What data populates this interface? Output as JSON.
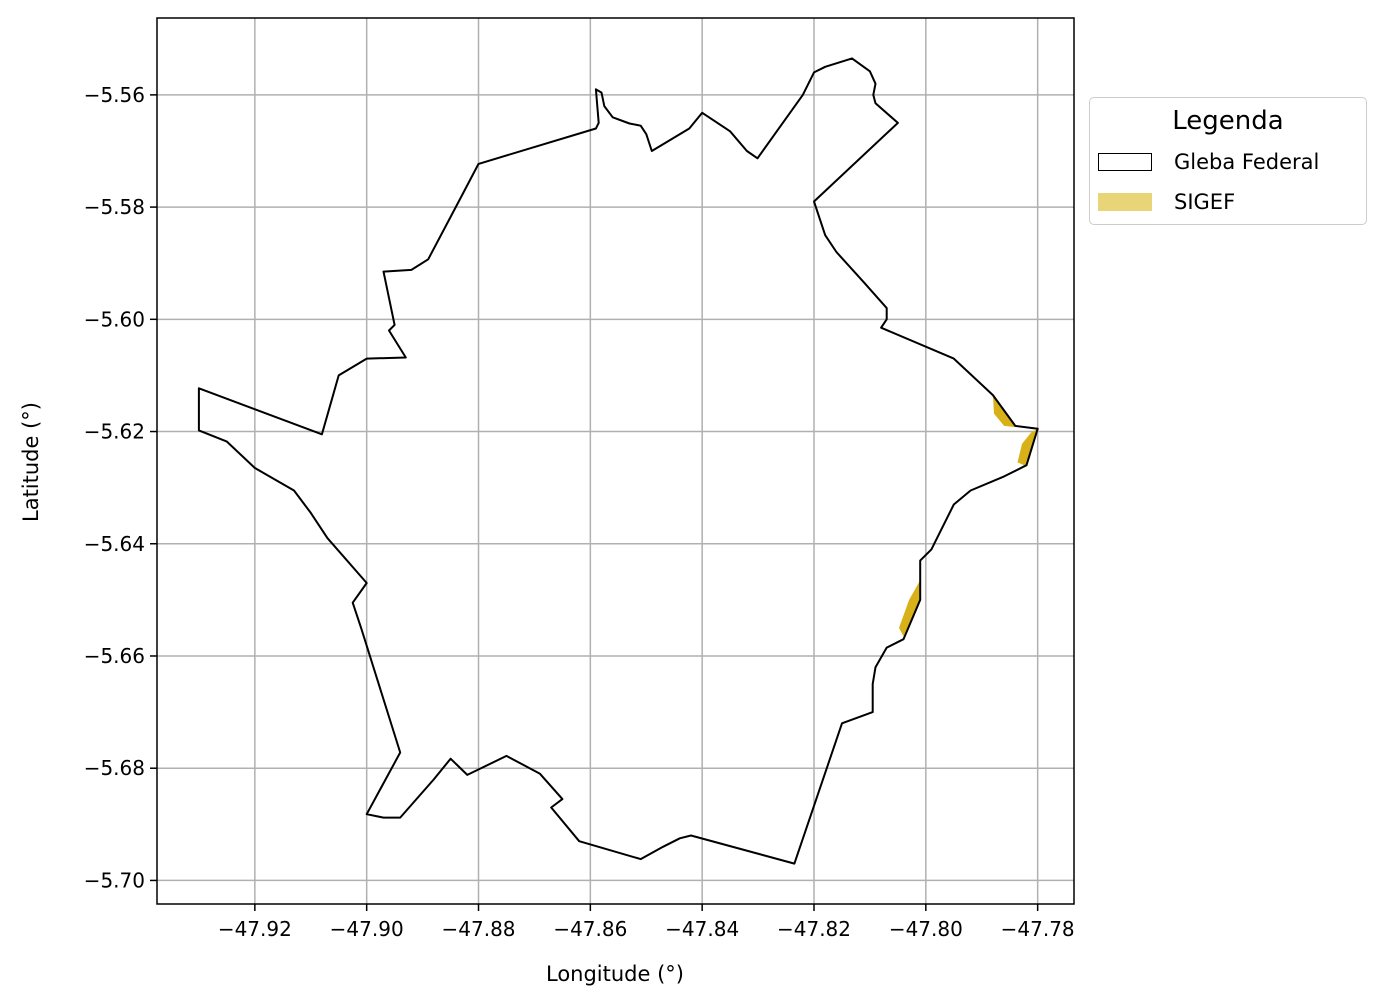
{
  "chart_data": {
    "type": "map",
    "xlabel": "Longitude (°)",
    "ylabel": "Latitude (°)",
    "xlim": [
      -47.9375,
      -47.7735
    ],
    "ylim": [
      -5.7042,
      -5.5463
    ],
    "x_ticks": [
      -47.92,
      -47.9,
      -47.88,
      -47.86,
      -47.84,
      -47.82,
      -47.8,
      -47.78
    ],
    "x_tick_labels": [
      "−47.92",
      "−47.90",
      "−47.88",
      "−47.86",
      "−47.84",
      "−47.82",
      "−47.80",
      "−47.78"
    ],
    "y_ticks": [
      -5.56,
      -5.58,
      -5.6,
      -5.62,
      -5.64,
      -5.66,
      -5.68,
      -5.7
    ],
    "y_tick_labels": [
      "−5.56",
      "−5.58",
      "−5.60",
      "−5.62",
      "−5.64",
      "−5.66",
      "−5.68",
      "−5.70"
    ],
    "grid": true,
    "legend": {
      "title": "Legenda",
      "placement": "outside-right",
      "entries": [
        {
          "label": "Gleba Federal",
          "facecolor": "#ffffff",
          "edgecolor": "#000000"
        },
        {
          "label": "SIGEF",
          "facecolor": "#e8d577"
        }
      ]
    },
    "layers": {
      "gleba_federal": {
        "edgecolor": "#000000",
        "facecolor": "none",
        "coordinates": [
          [
            -47.859,
            -5.559
          ],
          [
            -47.858,
            -5.5596
          ],
          [
            -47.8575,
            -5.562
          ],
          [
            -47.856,
            -5.564
          ],
          [
            -47.853,
            -5.5651
          ],
          [
            -47.851,
            -5.5655
          ],
          [
            -47.85,
            -5.567
          ],
          [
            -47.849,
            -5.57
          ],
          [
            -47.8423,
            -5.566
          ],
          [
            -47.84,
            -5.5632
          ],
          [
            -47.835,
            -5.5665
          ],
          [
            -47.832,
            -5.57
          ],
          [
            -47.8301,
            -5.5713
          ],
          [
            -47.822,
            -5.56
          ],
          [
            -47.82,
            -5.556
          ],
          [
            -47.818,
            -5.555
          ],
          [
            -47.8132,
            -5.5535
          ],
          [
            -47.81,
            -5.5558
          ],
          [
            -47.809,
            -5.558
          ],
          [
            -47.8094,
            -5.56
          ],
          [
            -47.809,
            -5.5615
          ],
          [
            -47.805,
            -5.565
          ],
          [
            -47.82,
            -5.579
          ],
          [
            -47.818,
            -5.585
          ],
          [
            -47.816,
            -5.588
          ],
          [
            -47.811,
            -5.5935
          ],
          [
            -47.807,
            -5.598
          ],
          [
            -47.807,
            -5.6
          ],
          [
            -47.808,
            -5.6015
          ],
          [
            -47.795,
            -5.607
          ],
          [
            -47.788,
            -5.6135
          ],
          [
            -47.784,
            -5.619
          ],
          [
            -47.78,
            -5.6195
          ],
          [
            -47.782,
            -5.626
          ],
          [
            -47.786,
            -5.628
          ],
          [
            -47.792,
            -5.6305
          ],
          [
            -47.795,
            -5.633
          ],
          [
            -47.798,
            -5.639
          ],
          [
            -47.799,
            -5.641
          ],
          [
            -47.801,
            -5.643
          ],
          [
            -47.801,
            -5.65
          ],
          [
            -47.804,
            -5.657
          ],
          [
            -47.807,
            -5.6585
          ],
          [
            -47.809,
            -5.662
          ],
          [
            -47.8095,
            -5.665
          ],
          [
            -47.8095,
            -5.67
          ],
          [
            -47.815,
            -5.672
          ],
          [
            -47.8235,
            -5.697
          ],
          [
            -47.842,
            -5.692
          ],
          [
            -47.844,
            -5.6925
          ],
          [
            -47.847,
            -5.694
          ],
          [
            -47.851,
            -5.6962
          ],
          [
            -47.862,
            -5.693
          ],
          [
            -47.867,
            -5.687
          ],
          [
            -47.865,
            -5.6855
          ],
          [
            -47.869,
            -5.681
          ],
          [
            -47.875,
            -5.6778
          ],
          [
            -47.882,
            -5.6812
          ],
          [
            -47.885,
            -5.6783
          ],
          [
            -47.888,
            -5.682
          ],
          [
            -47.894,
            -5.6888
          ],
          [
            -47.897,
            -5.6888
          ],
          [
            -47.9,
            -5.6882
          ],
          [
            -47.894,
            -5.6772
          ],
          [
            -47.901,
            -5.655
          ],
          [
            -47.9025,
            -5.6505
          ],
          [
            -47.9,
            -5.647
          ],
          [
            -47.907,
            -5.639
          ],
          [
            -47.91,
            -5.6345
          ],
          [
            -47.913,
            -5.6305
          ],
          [
            -47.92,
            -5.6265
          ],
          [
            -47.925,
            -5.6218
          ],
          [
            -47.93,
            -5.6198
          ],
          [
            -47.93,
            -5.6123
          ],
          [
            -47.908,
            -5.6205
          ],
          [
            -47.905,
            -5.61
          ],
          [
            -47.9,
            -5.607
          ],
          [
            -47.893,
            -5.6068
          ],
          [
            -47.896,
            -5.602
          ],
          [
            -47.895,
            -5.601
          ],
          [
            -47.897,
            -5.5915
          ],
          [
            -47.892,
            -5.5912
          ],
          [
            -47.889,
            -5.5893
          ],
          [
            -47.883,
            -5.578
          ],
          [
            -47.88,
            -5.5723
          ],
          [
            -47.859,
            -5.566
          ],
          [
            -47.8585,
            -5.565
          ],
          [
            -47.859,
            -5.559
          ]
        ]
      },
      "sigef": {
        "facecolor": "#d7b117",
        "polygons": [
          [
            [
              -47.788,
              -5.6135
            ],
            [
              -47.784,
              -5.6192
            ],
            [
              -47.786,
              -5.619
            ],
            [
              -47.7878,
              -5.6168
            ]
          ],
          [
            [
              -47.78,
              -5.6195
            ],
            [
              -47.782,
              -5.6262
            ],
            [
              -47.7836,
              -5.6255
            ],
            [
              -47.7828,
              -5.6222
            ],
            [
              -47.7812,
              -5.6202
            ]
          ],
          [
            [
              -47.801,
              -5.6465
            ],
            [
              -47.801,
              -5.65
            ],
            [
              -47.804,
              -5.6565
            ],
            [
              -47.8048,
              -5.655
            ],
            [
              -47.803,
              -5.65
            ]
          ]
        ]
      }
    }
  }
}
